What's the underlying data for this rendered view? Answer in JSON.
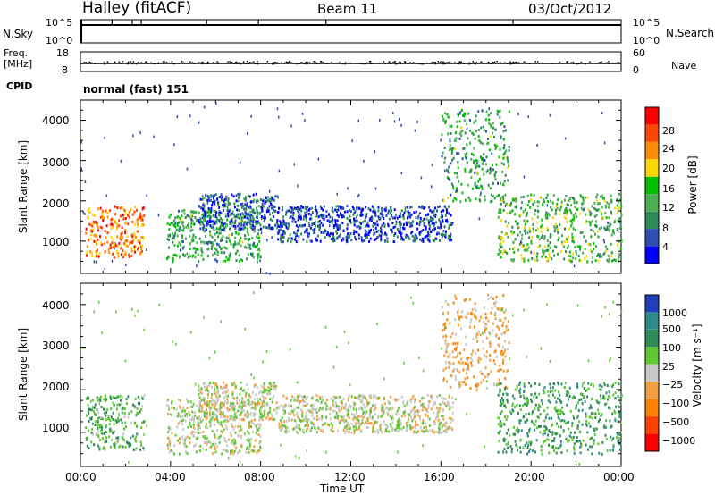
{
  "header": {
    "title": "Halley (fitACF)",
    "beam": "Beam 11",
    "date": "03/Oct/2012"
  },
  "sky_panel": {
    "left_label": "N.Sky",
    "right_label": "N.Search",
    "left_ticks": [
      "10^5",
      "10^0"
    ],
    "right_ticks": [
      "10^5",
      "10^0"
    ]
  },
  "freq_panel": {
    "left_label_line1": "Freq.",
    "left_label_line2": "[MHz]",
    "right_label": "Nave",
    "left_ticks": [
      "18",
      "8"
    ],
    "right_ticks": [
      "60",
      "0"
    ]
  },
  "cpid": {
    "label": "CPID",
    "text": "normal (fast) 151"
  },
  "power_panel": {
    "ylabel": "Slant Range [km]",
    "yticks": [
      "4000",
      "3000",
      "2000",
      "1000"
    ],
    "colorbar_label": "Power [dB]",
    "colorbar_ticks": [
      "28",
      "24",
      "20",
      "16",
      "12",
      "8",
      "4"
    ],
    "colors": [
      "#0000ff",
      "#2d4fb4",
      "#2e8b57",
      "#4caf50",
      "#00c000",
      "#ffd700",
      "#ff8c00",
      "#ff4500",
      "#ff0000"
    ]
  },
  "velocity_panel": {
    "ylabel": "Slant Range [km]",
    "yticks": [
      "4000",
      "3000",
      "2000",
      "1000"
    ],
    "colorbar_label": "Velocity [m s⁻¹]",
    "colorbar_ticks": [
      "1000",
      "500",
      "100",
      "25",
      "−25",
      "−100",
      "−500",
      "−1000"
    ],
    "colors": [
      "#1f3fbf",
      "#2e8b8b",
      "#2e8b57",
      "#5fc832",
      "#c8c8c8",
      "#f0a040",
      "#ff8000",
      "#ff4000",
      "#ff0000"
    ]
  },
  "xaxis": {
    "label": "Time UT",
    "ticks": [
      "00:00",
      "04:00",
      "08:00",
      "12:00",
      "16:00",
      "20:00",
      "00:00"
    ]
  },
  "chart_data": {
    "type": "heatmap",
    "title": "Halley (fitACF) Beam 11 03/Oct/2012",
    "xlabel": "Time UT",
    "ylabel": "Slant Range [km]",
    "xlim": [
      0,
      24
    ],
    "ylim": [
      200,
      4500
    ],
    "power_range_dB": [
      0,
      32
    ],
    "velocity_range_ms": [
      -1000,
      1000
    ],
    "echo_regions": [
      {
        "t_start": 0.2,
        "t_end": 2.8,
        "range_low": 600,
        "range_high": 1900,
        "power_dB": 24,
        "velocity_ms": 300
      },
      {
        "t_start": 3.8,
        "t_end": 8.0,
        "range_low": 500,
        "range_high": 1800,
        "power_dB": 12,
        "velocity_ms": 50
      },
      {
        "t_start": 5.2,
        "t_end": 8.7,
        "range_low": 1300,
        "range_high": 2200,
        "power_dB": 6,
        "velocity_ms": 0
      },
      {
        "t_start": 8.7,
        "t_end": 16.5,
        "range_low": 1000,
        "range_high": 1900,
        "power_dB": 5,
        "velocity_ms": 0
      },
      {
        "t_start": 16.0,
        "t_end": 19.0,
        "range_low": 2000,
        "range_high": 4300,
        "power_dB": 12,
        "velocity_ms": -200
      },
      {
        "t_start": 18.5,
        "t_end": 24.0,
        "range_low": 500,
        "range_high": 2200,
        "power_dB": 14,
        "velocity_ms": 400
      }
    ]
  }
}
